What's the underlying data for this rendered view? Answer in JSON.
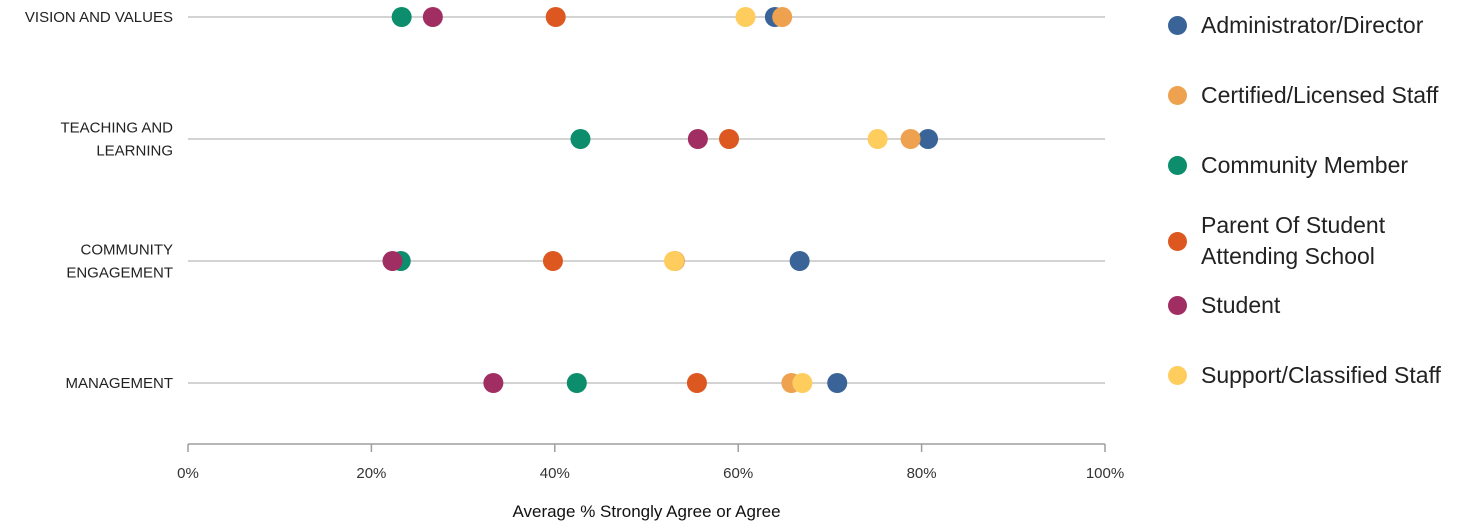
{
  "chart_data": {
    "type": "scatter",
    "subtype": "dot-plot",
    "categories": [
      "VISION AND VALUES",
      "TEACHING AND LEARNING",
      "COMMUNITY ENGAGEMENT",
      "MANAGEMENT"
    ],
    "category_labels": [
      [
        "VISION AND VALUES"
      ],
      [
        "TEACHING AND",
        "LEARNING"
      ],
      [
        "COMMUNITY",
        "ENGAGEMENT"
      ],
      [
        "MANAGEMENT"
      ]
    ],
    "xlabel": "Average % Strongly Agree or Agree",
    "xlim": [
      0,
      100
    ],
    "x_ticks": [
      0,
      20,
      40,
      60,
      80,
      100
    ],
    "x_tick_labels": [
      "0%",
      "20%",
      "40%",
      "60%",
      "80%",
      "100%"
    ],
    "grid": false,
    "legend_position": "right",
    "series": [
      {
        "name": "Administrator/Director",
        "color": "#3a6498",
        "values": [
          64,
          80.7,
          66.7,
          70.8
        ]
      },
      {
        "name": "Certified/Licensed Staff",
        "color": "#eea14f",
        "values": [
          64.8,
          78.8,
          53.1,
          65.8
        ]
      },
      {
        "name": "Community Member",
        "color": "#0c8d6b",
        "values": [
          23.3,
          42.8,
          23.2,
          42.4
        ]
      },
      {
        "name": "Parent Of Student\nAttending School",
        "color": "#dc5820",
        "values": [
          40.1,
          59,
          39.8,
          55.5
        ]
      },
      {
        "name": "Student",
        "color": "#a12e63",
        "values": [
          26.7,
          55.6,
          22.3,
          33.3
        ]
      },
      {
        "name": "Support/Classified Staff",
        "color": "#ffcd5e",
        "values": [
          60.8,
          75.2,
          53,
          67
        ]
      }
    ]
  }
}
